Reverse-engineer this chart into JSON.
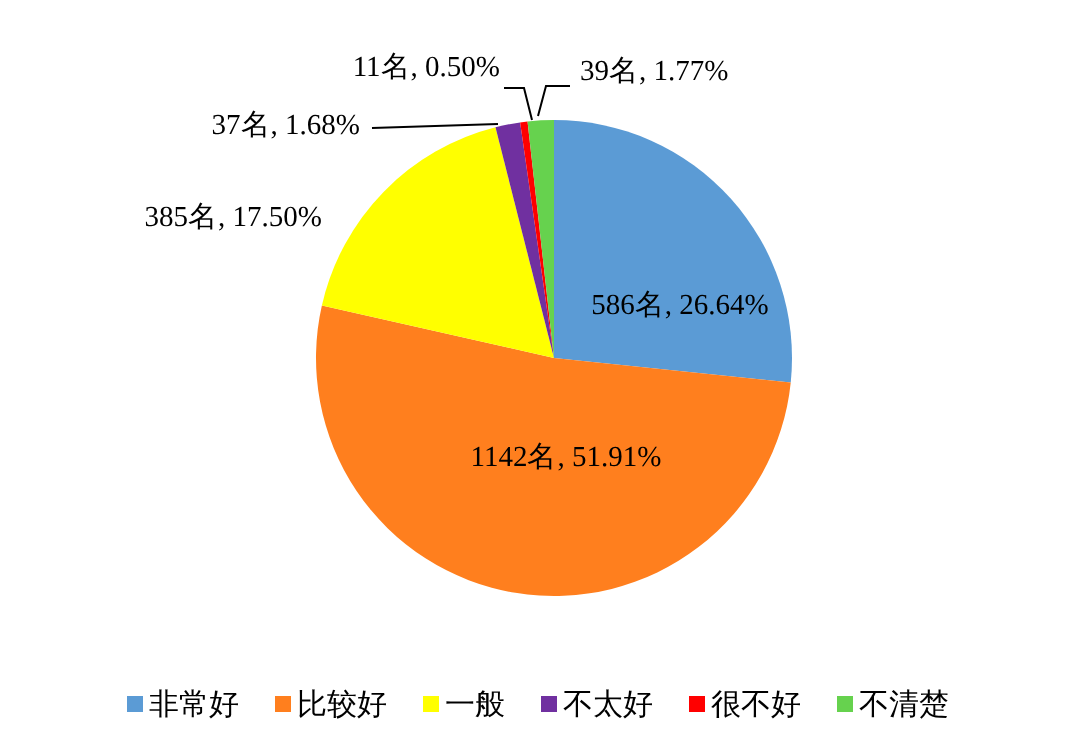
{
  "chart_data": {
    "type": "pie",
    "categories": [
      "非常好",
      "比较好",
      "一般",
      "不太好",
      "很不好",
      "不清楚"
    ],
    "values": [
      586,
      1142,
      385,
      37,
      11,
      39
    ],
    "colors": [
      "#5b9bd5",
      "#ff7f1e",
      "#ffff00",
      "#7030a0",
      "#ff0000",
      "#66d24e"
    ],
    "value_labels": [
      "586名, 26.64%",
      "1142名, 51.91%",
      "385名, 17.50%",
      "37名, 1.68%",
      "11名, 0.50%",
      "39名, 1.77%"
    ],
    "legend": "bottom"
  }
}
